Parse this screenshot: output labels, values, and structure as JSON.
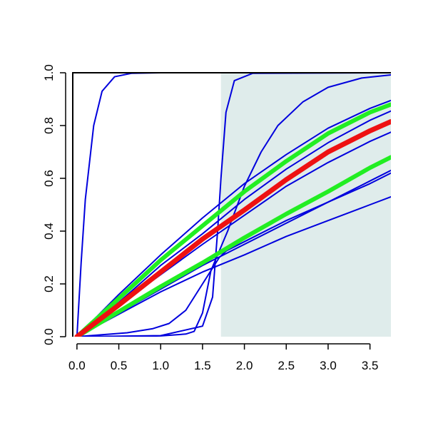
{
  "chart_data": {
    "type": "line",
    "title": "",
    "xlabel": "",
    "ylabel": "",
    "xlim": [
      -0.05,
      3.75
    ],
    "ylim": [
      0,
      1
    ],
    "x_ticks": [
      0.0,
      0.5,
      1.0,
      1.5,
      2.0,
      2.5,
      3.0,
      3.5
    ],
    "x_tick_labels": [
      "0.0",
      "0.5",
      "1.0",
      "1.5",
      "2.0",
      "2.5",
      "3.0",
      "3.5"
    ],
    "y_ticks": [
      0.0,
      0.2,
      0.4,
      0.6,
      0.8,
      1.0
    ],
    "y_tick_labels": [
      "0.0",
      "0.2",
      "0.4",
      "0.6",
      "0.8",
      "1.0"
    ],
    "shaded_region": {
      "x_from": 1.72,
      "x_to": 3.75,
      "y_from": 0,
      "y_to": 1,
      "color": "#dfeceb"
    },
    "grid": false,
    "legend": "none",
    "series": [
      {
        "color": "#0000dd",
        "points": [
          [
            0.0,
            0.0
          ],
          [
            0.05,
            0.28
          ],
          [
            0.1,
            0.52
          ],
          [
            0.2,
            0.8
          ],
          [
            0.3,
            0.93
          ],
          [
            0.45,
            0.985
          ],
          [
            0.65,
            0.998
          ],
          [
            1.0,
            1.0
          ],
          [
            3.75,
            1.0
          ]
        ]
      },
      {
        "color": "#0000dd",
        "points": [
          [
            0.0,
            0.0
          ],
          [
            1.0,
            0.004
          ],
          [
            1.5,
            0.04
          ],
          [
            1.62,
            0.15
          ],
          [
            1.68,
            0.4
          ],
          [
            1.72,
            0.6
          ],
          [
            1.78,
            0.85
          ],
          [
            1.88,
            0.97
          ],
          [
            2.1,
            0.998
          ],
          [
            3.75,
            1.0
          ]
        ]
      },
      {
        "color": "#0000dd",
        "points": [
          [
            0.0,
            0.0
          ],
          [
            0.5,
            0.0
          ],
          [
            1.0,
            0.003
          ],
          [
            1.3,
            0.01
          ],
          [
            1.4,
            0.02
          ],
          [
            1.5,
            0.09
          ],
          [
            1.6,
            0.25
          ],
          [
            1.8,
            0.4
          ],
          [
            2.0,
            0.57
          ],
          [
            2.2,
            0.7
          ],
          [
            2.4,
            0.8
          ],
          [
            2.7,
            0.89
          ],
          [
            3.0,
            0.945
          ],
          [
            3.4,
            0.98
          ],
          [
            3.75,
            0.992
          ]
        ]
      },
      {
        "color": "#0000dd",
        "points": [
          [
            0.0,
            0.0
          ],
          [
            0.6,
            0.015
          ],
          [
            0.9,
            0.03
          ],
          [
            1.1,
            0.05
          ],
          [
            1.3,
            0.1
          ],
          [
            1.5,
            0.2
          ],
          [
            1.7,
            0.3
          ],
          [
            1.8,
            0.33
          ]
        ]
      },
      {
        "color": "#0000dd",
        "points": [
          [
            0.0,
            0.0
          ],
          [
            0.5,
            0.16
          ],
          [
            1.0,
            0.31
          ],
          [
            1.5,
            0.45
          ],
          [
            2.0,
            0.58
          ],
          [
            2.5,
            0.69
          ],
          [
            3.0,
            0.79
          ],
          [
            3.5,
            0.865
          ],
          [
            3.75,
            0.895
          ]
        ]
      },
      {
        "color": "#0000dd",
        "points": [
          [
            0.0,
            0.0
          ],
          [
            0.5,
            0.13
          ],
          [
            1.0,
            0.27
          ],
          [
            1.5,
            0.39
          ],
          [
            2.0,
            0.52
          ],
          [
            2.5,
            0.635
          ],
          [
            3.0,
            0.735
          ],
          [
            3.5,
            0.82
          ],
          [
            3.75,
            0.855
          ]
        ]
      },
      {
        "color": "#0000dd",
        "points": [
          [
            0.0,
            0.0
          ],
          [
            0.5,
            0.12
          ],
          [
            1.0,
            0.235
          ],
          [
            1.5,
            0.35
          ],
          [
            2.0,
            0.46
          ],
          [
            2.5,
            0.57
          ],
          [
            3.0,
            0.66
          ],
          [
            3.5,
            0.74
          ],
          [
            3.75,
            0.775
          ]
        ]
      },
      {
        "color": "#0000dd",
        "points": [
          [
            0.0,
            0.0
          ],
          [
            0.5,
            0.095
          ],
          [
            1.0,
            0.19
          ],
          [
            1.5,
            0.28
          ],
          [
            2.0,
            0.36
          ],
          [
            2.5,
            0.44
          ],
          [
            3.0,
            0.51
          ],
          [
            3.5,
            0.59
          ],
          [
            3.75,
            0.63
          ]
        ]
      },
      {
        "color": "#0000dd",
        "points": [
          [
            0.0,
            0.0
          ],
          [
            0.5,
            0.09
          ],
          [
            1.0,
            0.18
          ],
          [
            1.5,
            0.27
          ],
          [
            2.0,
            0.35
          ],
          [
            2.5,
            0.43
          ],
          [
            3.0,
            0.51
          ],
          [
            3.5,
            0.58
          ],
          [
            3.75,
            0.62
          ]
        ]
      },
      {
        "color": "#0000dd",
        "points": [
          [
            0.0,
            0.0
          ],
          [
            0.5,
            0.085
          ],
          [
            1.0,
            0.17
          ],
          [
            1.5,
            0.245
          ],
          [
            2.0,
            0.31
          ],
          [
            2.5,
            0.38
          ],
          [
            3.0,
            0.44
          ],
          [
            3.5,
            0.5
          ],
          [
            3.75,
            0.53
          ]
        ]
      },
      {
        "color": "#22ee22",
        "points": [
          [
            0.0,
            0.0
          ],
          [
            0.5,
            0.145
          ],
          [
            1.0,
            0.29
          ],
          [
            1.5,
            0.42
          ],
          [
            2.0,
            0.55
          ],
          [
            2.5,
            0.665
          ],
          [
            3.0,
            0.77
          ],
          [
            3.5,
            0.85
          ],
          [
            3.75,
            0.88
          ]
        ]
      },
      {
        "color": "#22ee22",
        "points": [
          [
            0.0,
            0.0
          ],
          [
            0.5,
            0.095
          ],
          [
            1.0,
            0.19
          ],
          [
            1.5,
            0.28
          ],
          [
            2.0,
            0.375
          ],
          [
            2.5,
            0.465
          ],
          [
            3.0,
            0.55
          ],
          [
            3.5,
            0.64
          ],
          [
            3.75,
            0.68
          ]
        ]
      },
      {
        "color": "#ee1111",
        "points": [
          [
            0.0,
            0.0
          ],
          [
            0.5,
            0.12
          ],
          [
            1.0,
            0.245
          ],
          [
            1.5,
            0.37
          ],
          [
            2.0,
            0.48
          ],
          [
            2.5,
            0.595
          ],
          [
            3.0,
            0.7
          ],
          [
            3.5,
            0.78
          ],
          [
            3.75,
            0.815
          ]
        ]
      }
    ]
  }
}
